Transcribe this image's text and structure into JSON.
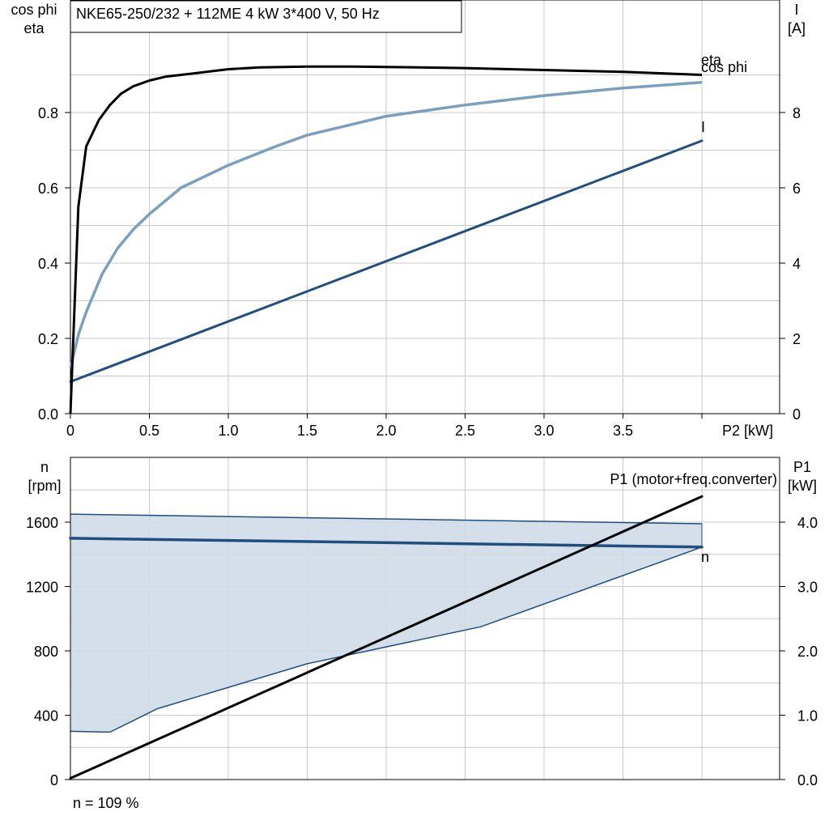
{
  "title": "NKE65-250/232 + 112ME   4 kW   3*400 V, 50 Hz",
  "footer_note": "n = 109 %",
  "colors": {
    "eta": "#000000",
    "cos_phi": "#7a9fbf",
    "current": "#1f4e7f",
    "speed": "#1f4e7f",
    "band_fill": "#cfdbe7",
    "p1": "#000000",
    "grid": "#c8c8c8"
  },
  "chart_data": [
    {
      "type": "line",
      "xlabel": "P2 [kW]",
      "ylabel_left": [
        "cos phi",
        "eta"
      ],
      "ylabel_right": [
        "I",
        "[A]"
      ],
      "xlim": [
        0,
        4.5
      ],
      "ylim_left": [
        0,
        1.0
      ],
      "ylim_right": [
        0,
        10
      ],
      "x_ticks": [
        0,
        0.5,
        1.0,
        1.5,
        2.0,
        2.5,
        3.0,
        3.5
      ],
      "x_tick_labels": [
        "0",
        "0.5",
        "1.0",
        "1.5",
        "2.0",
        "2.5",
        "3.0",
        "3.5"
      ],
      "y_left_ticks": [
        0,
        0.2,
        0.4,
        0.6,
        0.8
      ],
      "y_left_tick_labels": [
        "0.0",
        "0.2",
        "0.4",
        "0.6",
        "0.8"
      ],
      "y_right_ticks": [
        0,
        2,
        4,
        6,
        8
      ],
      "y_right_tick_labels": [
        "0",
        "2",
        "4",
        "6",
        "8"
      ],
      "grid": true,
      "series": [
        {
          "name": "eta",
          "axis": "left",
          "x": [
            0,
            0.05,
            0.1,
            0.18,
            0.25,
            0.32,
            0.4,
            0.5,
            0.6,
            0.8,
            1.0,
            1.2,
            1.5,
            1.8,
            2.0,
            2.5,
            3.0,
            3.5,
            4.0
          ],
          "y": [
            0.0,
            0.55,
            0.71,
            0.78,
            0.82,
            0.85,
            0.87,
            0.885,
            0.895,
            0.905,
            0.915,
            0.92,
            0.922,
            0.922,
            0.921,
            0.918,
            0.913,
            0.908,
            0.9
          ]
        },
        {
          "name": "cos phi",
          "axis": "left",
          "x": [
            0,
            0.05,
            0.1,
            0.2,
            0.3,
            0.4,
            0.5,
            0.7,
            1.0,
            1.3,
            1.5,
            2.0,
            2.5,
            3.0,
            3.5,
            4.0
          ],
          "y": [
            0.12,
            0.21,
            0.27,
            0.37,
            0.44,
            0.49,
            0.53,
            0.6,
            0.66,
            0.71,
            0.74,
            0.79,
            0.82,
            0.845,
            0.865,
            0.88
          ]
        },
        {
          "name": "I",
          "axis": "right",
          "x": [
            0,
            4.0
          ],
          "y": [
            0.85,
            7.25
          ]
        }
      ]
    },
    {
      "type": "line",
      "ylabel_left": [
        "n",
        "[rpm]"
      ],
      "ylabel_right": [
        "P1",
        "[kW]"
      ],
      "xlim": [
        0,
        4.5
      ],
      "ylim_left": [
        0,
        2000
      ],
      "ylim_right": [
        0,
        5.0
      ],
      "y_left_ticks": [
        0,
        400,
        800,
        1200,
        1600
      ],
      "y_left_tick_labels": [
        "0",
        "400",
        "800",
        "1200",
        "1600"
      ],
      "y_right_ticks": [
        0,
        1.0,
        2.0,
        3.0,
        4.0
      ],
      "y_right_tick_labels": [
        "0.0",
        "1.0",
        "2.0",
        "3.0",
        "4.0"
      ],
      "grid": true,
      "speed_range": {
        "upper": {
          "x": [
            0,
            4.0
          ],
          "y": [
            1650,
            1590
          ]
        },
        "lower": {
          "x": [
            0,
            0.25,
            0.55,
            1.5,
            2.6,
            4.0
          ],
          "y": [
            300,
            295,
            440,
            720,
            950,
            1445
          ]
        }
      },
      "series": [
        {
          "name": "n",
          "axis": "left",
          "x": [
            0,
            4.0
          ],
          "y": [
            1500,
            1445
          ]
        },
        {
          "name": "P1 (motor+freq.converter)",
          "axis": "right",
          "x": [
            0,
            4.0
          ],
          "y": [
            0.02,
            4.4
          ]
        }
      ]
    }
  ]
}
